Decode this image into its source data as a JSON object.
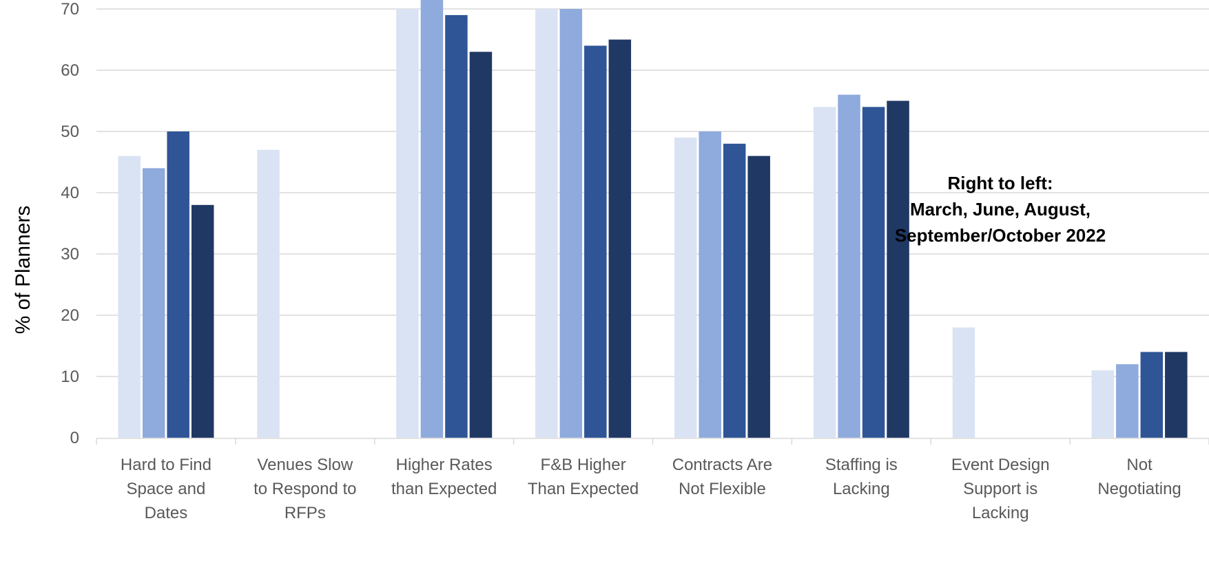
{
  "chart_data": {
    "type": "bar",
    "title": "",
    "xlabel": "",
    "ylabel": "% of Planners",
    "ylim": [
      0,
      70
    ],
    "yticks": [
      0,
      10,
      20,
      30,
      40,
      50,
      60,
      70
    ],
    "grid": true,
    "categories": [
      [
        "Hard to Find",
        "Space and",
        "Dates"
      ],
      [
        "Venues Slow",
        "to Respond to",
        "RFPs"
      ],
      [
        "Higher Rates",
        "than Expected"
      ],
      [
        "F&B Higher",
        "Than Expected"
      ],
      [
        "Contracts Are",
        "Not Flexible"
      ],
      [
        "Staffing is",
        "Lacking"
      ],
      [
        "Event Design",
        "Support is",
        "Lacking"
      ],
      [
        "Not",
        "Negotiating"
      ]
    ],
    "series": [
      {
        "color": "#dae3f3",
        "values": [
          46,
          47,
          70,
          70,
          49,
          54,
          18,
          11
        ]
      },
      {
        "color": "#8faadc",
        "values": [
          44,
          null,
          72,
          70,
          50,
          56,
          null,
          12
        ]
      },
      {
        "color": "#2f5597",
        "values": [
          50,
          null,
          69,
          64,
          48,
          54,
          null,
          14
        ]
      },
      {
        "color": "#203864",
        "values": [
          38,
          null,
          63,
          65,
          46,
          55,
          null,
          14
        ]
      }
    ],
    "annotation": [
      "Right to left:",
      "March, June, August,",
      "September/October 2022"
    ]
  }
}
